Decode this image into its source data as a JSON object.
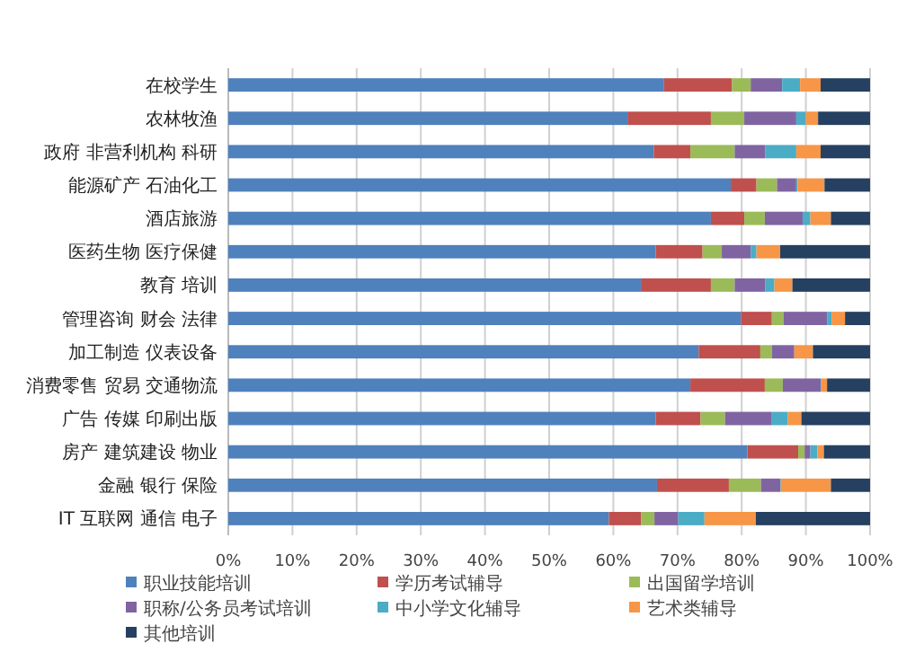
{
  "chart_data": {
    "type": "bar",
    "orientation": "horizontal",
    "stacked": true,
    "categories": [
      "在校学生",
      "农林牧渔",
      "政府 非营利机构 科研",
      "能源矿产 石油化工",
      "酒店旅游",
      "医药生物 医疗保健",
      "教育 培训",
      "管理咨询 财会 法律",
      "加工制造 仪表设备",
      "消费零售 贸易 交通物流",
      "广告 传媒 印刷出版",
      "房产 建筑建设 物业",
      "金融 银行 保险",
      "IT 互联网 通信 电子"
    ],
    "series": [
      {
        "name": "职业技能培训",
        "color": "#4f81bd",
        "values": [
          67.9,
          62.2,
          66.3,
          78.3,
          75.2,
          66.6,
          64.3,
          79.9,
          73.3,
          72.0,
          66.6,
          80.9,
          66.8,
          59.3
        ]
      },
      {
        "name": "学历考试辅导",
        "color": "#c0504d",
        "values": [
          10.6,
          13.0,
          5.7,
          4.0,
          5.2,
          7.3,
          10.9,
          4.8,
          9.6,
          11.6,
          7.0,
          7.9,
          11.2,
          5.0
        ]
      },
      {
        "name": "出国留学培训",
        "color": "#9bbb59",
        "values": [
          2.9,
          5.2,
          6.9,
          3.2,
          3.2,
          3.0,
          3.7,
          1.8,
          1.8,
          2.8,
          3.8,
          1.0,
          5.0,
          2.1
        ]
      },
      {
        "name": "职称/公务员考试培训",
        "color": "#8064a2",
        "values": [
          4.9,
          8.1,
          4.8,
          3.0,
          5.9,
          4.5,
          4.8,
          6.8,
          3.5,
          5.9,
          7.3,
          0.9,
          3.0,
          3.7
        ]
      },
      {
        "name": "中小学文化辅导",
        "color": "#4bacc6",
        "values": [
          2.8,
          1.5,
          4.8,
          0.2,
          1.2,
          0.9,
          1.4,
          0.7,
          null,
          0.1,
          2.5,
          1.1,
          0.1,
          4.1
        ]
      },
      {
        "name": "艺术类辅导",
        "color": "#f79646",
        "values": [
          3.2,
          1.9,
          3.8,
          4.2,
          3.2,
          3.7,
          2.8,
          2.1,
          2.9,
          0.9,
          2.1,
          1.0,
          7.8,
          8.0
        ]
      },
      {
        "name": "其他培训",
        "color": "#254061",
        "values": [
          7.7,
          8.1,
          7.7,
          7.1,
          6.1,
          14.0,
          12.1,
          3.9,
          8.9,
          6.7,
          10.7,
          7.2,
          6.1,
          17.8
        ]
      }
    ],
    "xlim": [
      0,
      100
    ],
    "xticks": [
      {
        "value": 0,
        "label": "0%"
      },
      {
        "value": 10,
        "label": "10%"
      },
      {
        "value": 20,
        "label": "20%"
      },
      {
        "value": 30,
        "label": "30%"
      },
      {
        "value": 40,
        "label": "40%"
      },
      {
        "value": 50,
        "label": "50%"
      },
      {
        "value": 60,
        "label": "60%"
      },
      {
        "value": 70,
        "label": "70%"
      },
      {
        "value": 80,
        "label": "80%"
      },
      {
        "value": 90,
        "label": "90%"
      },
      {
        "value": 100,
        "label": "100%"
      }
    ],
    "grid": "x",
    "legend": "bottom"
  }
}
